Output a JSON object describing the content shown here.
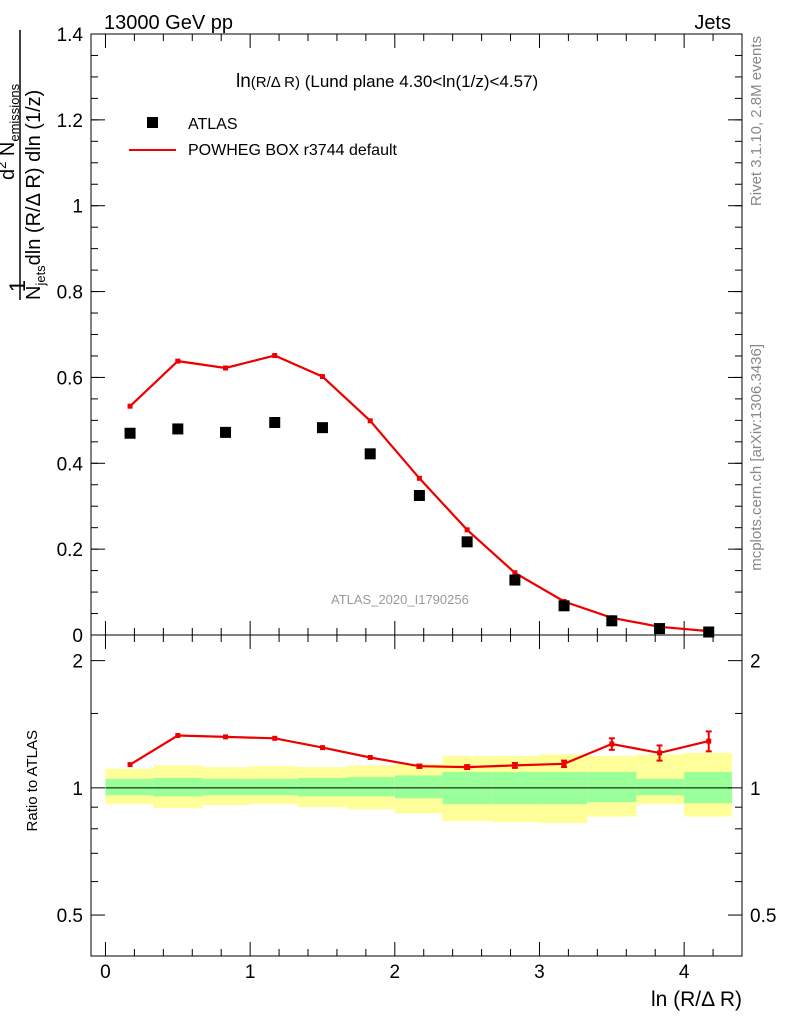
{
  "header": {
    "left": "13000 GeV pp",
    "right": "Jets"
  },
  "side_labels": {
    "rivet": "Rivet 3.1.10,  2.8M events",
    "mcplots": "mcplots.cern.ch [arXiv:1306.3436]"
  },
  "chart_data": [
    {
      "type": "scatter",
      "panel": "main",
      "title": "ln(R/Δ R) (Lund plane 4.30<ln(1/z)<4.57)",
      "title_parts": {
        "main": "ln",
        "arg": "(R/Δ R)",
        "rest": " (Lund plane 4.30<ln(1/z)<4.57)"
      },
      "watermark": "ATLAS_2020_I1790256",
      "ylabel": {
        "one": "1",
        "n": "N",
        "n_sub": "jets",
        "den_rest": "dln (R/Δ R) dln (1/z)",
        "num": "d",
        "num_sup": "2",
        "num_n": " N",
        "num_sub": "emissions"
      },
      "xlim": [
        -0.1,
        4.4
      ],
      "ylim": [
        0,
        1.4
      ],
      "yticks": [
        0,
        0.2,
        0.4,
        0.6,
        0.8,
        1,
        1.2,
        1.4
      ],
      "ytick_labels": [
        "0",
        "0.2",
        "0.4",
        "0.6",
        "0.8",
        "1",
        "1.2",
        "1.4"
      ],
      "legend_position": "top-left",
      "series": [
        {
          "name": "ATLAS",
          "style": "markers",
          "color": "#000000",
          "x": [
            0.17,
            0.5,
            0.83,
            1.17,
            1.5,
            1.83,
            2.17,
            2.5,
            2.83,
            3.17,
            3.5,
            3.83,
            4.17
          ],
          "y": [
            0.47,
            0.48,
            0.472,
            0.495,
            0.483,
            0.422,
            0.325,
            0.217,
            0.128,
            0.068,
            0.033,
            0.015,
            0.007
          ]
        },
        {
          "name": "POWHEG BOX r3744 default",
          "style": "line",
          "color": "#ee0000",
          "x": [
            0.17,
            0.5,
            0.83,
            1.17,
            1.5,
            1.83,
            2.17,
            2.5,
            2.83,
            3.17,
            3.5,
            3.83,
            4.17
          ],
          "y": [
            0.533,
            0.638,
            0.622,
            0.651,
            0.602,
            0.499,
            0.365,
            0.245,
            0.145,
            0.078,
            0.04,
            0.019,
            0.009
          ]
        }
      ]
    },
    {
      "type": "line",
      "panel": "ratio",
      "ylabel": "Ratio to ATLAS",
      "xlabel": "ln (R/Δ R)",
      "xlim": [
        -0.1,
        4.4
      ],
      "ylim": [
        0.4,
        2.3
      ],
      "yscale": "log",
      "xticks": [
        0,
        1,
        2,
        3,
        4
      ],
      "xtick_labels": [
        "0",
        "1",
        "2",
        "3",
        "4"
      ],
      "yticks": [
        0.5,
        1,
        2
      ],
      "ytick_labels": [
        "0.5",
        "1",
        "2"
      ],
      "bin_edges": [
        0,
        0.33,
        0.67,
        1.0,
        1.33,
        1.67,
        2.0,
        2.33,
        2.67,
        3.0,
        3.33,
        3.67,
        4.0,
        4.33
      ],
      "band_outer": [
        [
          0.915,
          1.11
        ],
        [
          0.895,
          1.13
        ],
        [
          0.91,
          1.12
        ],
        [
          0.915,
          1.125
        ],
        [
          0.9,
          1.12
        ],
        [
          0.89,
          1.13
        ],
        [
          0.87,
          1.14
        ],
        [
          0.835,
          1.19
        ],
        [
          0.83,
          1.19
        ],
        [
          0.825,
          1.2
        ],
        [
          0.855,
          1.19
        ],
        [
          0.915,
          1.2
        ],
        [
          0.855,
          1.21
        ]
      ],
      "band_inner": [
        [
          0.96,
          1.05
        ],
        [
          0.955,
          1.055
        ],
        [
          0.96,
          1.05
        ],
        [
          0.96,
          1.05
        ],
        [
          0.955,
          1.055
        ],
        [
          0.955,
          1.06
        ],
        [
          0.945,
          1.07
        ],
        [
          0.915,
          1.09
        ],
        [
          0.915,
          1.09
        ],
        [
          0.915,
          1.09
        ],
        [
          0.925,
          1.09
        ],
        [
          0.96,
          1.05
        ],
        [
          0.92,
          1.09
        ]
      ],
      "series": [
        {
          "name": "POWHEG BOX r3744 default",
          "color": "#ee0000",
          "x": [
            0.17,
            0.5,
            0.83,
            1.17,
            1.5,
            1.83,
            2.17,
            2.5,
            2.83,
            3.17,
            3.5,
            3.83,
            4.17
          ],
          "y": [
            1.135,
            1.33,
            1.32,
            1.31,
            1.245,
            1.18,
            1.125,
            1.12,
            1.13,
            1.14,
            1.27,
            1.21,
            1.29
          ],
          "err": [
            0.008,
            0.008,
            0.008,
            0.008,
            0.008,
            0.008,
            0.01,
            0.012,
            0.015,
            0.02,
            0.04,
            0.05,
            0.07
          ]
        }
      ],
      "reference_line": 1
    }
  ]
}
